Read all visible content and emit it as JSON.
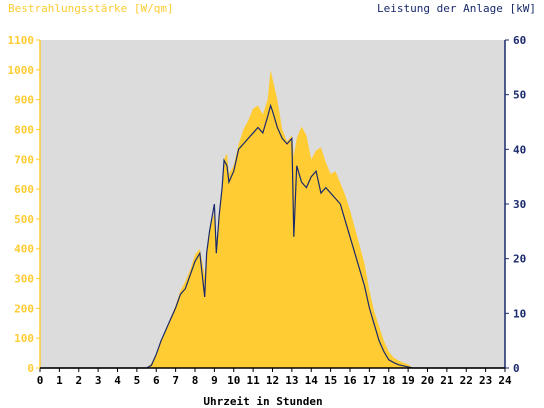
{
  "chart_data": {
    "type": "area",
    "left_axis_label": "Bestrahlungsstärke [W/qm]",
    "right_axis_label": "Leistung der Anlage [kW]",
    "xlabel": "Uhrzeit in Stunden",
    "xlim": [
      0,
      24
    ],
    "ylim_left": [
      0,
      1100
    ],
    "ylim_right": [
      0,
      60
    ],
    "x_ticks": [
      "0",
      "1",
      "2",
      "3",
      "4",
      "5",
      "6",
      "7",
      "8",
      "9",
      "10",
      "11",
      "12",
      "13",
      "14",
      "15",
      "16",
      "17",
      "18",
      "19",
      "20",
      "21",
      "22",
      "23",
      "24"
    ],
    "y_left_ticks": [
      "0",
      "100",
      "200",
      "300",
      "400",
      "500",
      "600",
      "700",
      "800",
      "900",
      "1000",
      "1100"
    ],
    "y_right_ticks": [
      "0",
      "10",
      "20",
      "30",
      "40",
      "50",
      "60"
    ],
    "grid": false,
    "colors": {
      "irradiance_fill": "#ffcc33",
      "power_line": "#1a2a6c",
      "plot_bg": "#dcdcdc",
      "left_axis_text": "#ffcc33",
      "right_axis_text": "#1a2a6c"
    },
    "series": [
      {
        "unit": "W/qm",
        "axis": "left",
        "x": [
          0,
          5.5,
          5.75,
          6,
          6.25,
          6.5,
          6.75,
          7,
          7.25,
          7.5,
          7.75,
          8,
          8.25,
          8.5,
          8.6,
          8.75,
          9,
          9.1,
          9.25,
          9.4,
          9.5,
          9.65,
          9.75,
          10,
          10.25,
          10.5,
          10.75,
          11,
          11.25,
          11.5,
          11.75,
          11.9,
          12,
          12.25,
          12.5,
          12.75,
          13,
          13.1,
          13.25,
          13.5,
          13.75,
          14,
          14.25,
          14.5,
          14.75,
          15,
          15.25,
          15.5,
          15.75,
          16,
          16.25,
          16.5,
          16.75,
          17,
          17.25,
          17.5,
          17.75,
          18,
          18.25,
          18.5,
          18.75,
          19,
          19.25,
          24
        ],
        "values": [
          0,
          0,
          15,
          50,
          90,
          130,
          170,
          210,
          260,
          290,
          330,
          380,
          400,
          310,
          390,
          470,
          520,
          430,
          500,
          600,
          700,
          720,
          650,
          680,
          750,
          800,
          830,
          870,
          880,
          850,
          900,
          1000,
          970,
          900,
          800,
          760,
          780,
          710,
          770,
          810,
          780,
          700,
          730,
          740,
          690,
          650,
          660,
          620,
          580,
          530,
          470,
          410,
          350,
          260,
          190,
          140,
          90,
          55,
          35,
          25,
          18,
          12,
          0,
          0
        ]
      },
      {
        "unit": "kW",
        "axis": "right",
        "x": [
          0,
          5.5,
          5.75,
          6,
          6.25,
          6.5,
          6.75,
          7,
          7.25,
          7.5,
          7.75,
          8,
          8.25,
          8.5,
          8.6,
          8.75,
          9,
          9.1,
          9.25,
          9.4,
          9.5,
          9.65,
          9.75,
          10,
          10.25,
          10.5,
          10.75,
          11,
          11.25,
          11.5,
          11.75,
          11.9,
          12,
          12.25,
          12.5,
          12.75,
          13,
          13.1,
          13.25,
          13.5,
          13.75,
          14,
          14.25,
          14.5,
          14.75,
          15,
          15.25,
          15.5,
          15.75,
          16,
          16.25,
          16.5,
          16.75,
          17,
          17.25,
          17.5,
          17.75,
          18,
          18.25,
          18.5,
          18.75,
          19,
          19.25,
          24
        ],
        "values": [
          0,
          0,
          0.5,
          2.5,
          5,
          7,
          9,
          11,
          13.5,
          14.5,
          17,
          19.5,
          21,
          13,
          21,
          25,
          30,
          21,
          28,
          33,
          38,
          37,
          34,
          36,
          40,
          41,
          42,
          43,
          44,
          43,
          46,
          48,
          47,
          44,
          42,
          41,
          42,
          24,
          37,
          34,
          33,
          35,
          36,
          32,
          33,
          32,
          31,
          30,
          27,
          24,
          21,
          18,
          15,
          11,
          8,
          5,
          3,
          1.5,
          1,
          0.6,
          0.4,
          0.2,
          0,
          0
        ]
      }
    ]
  }
}
